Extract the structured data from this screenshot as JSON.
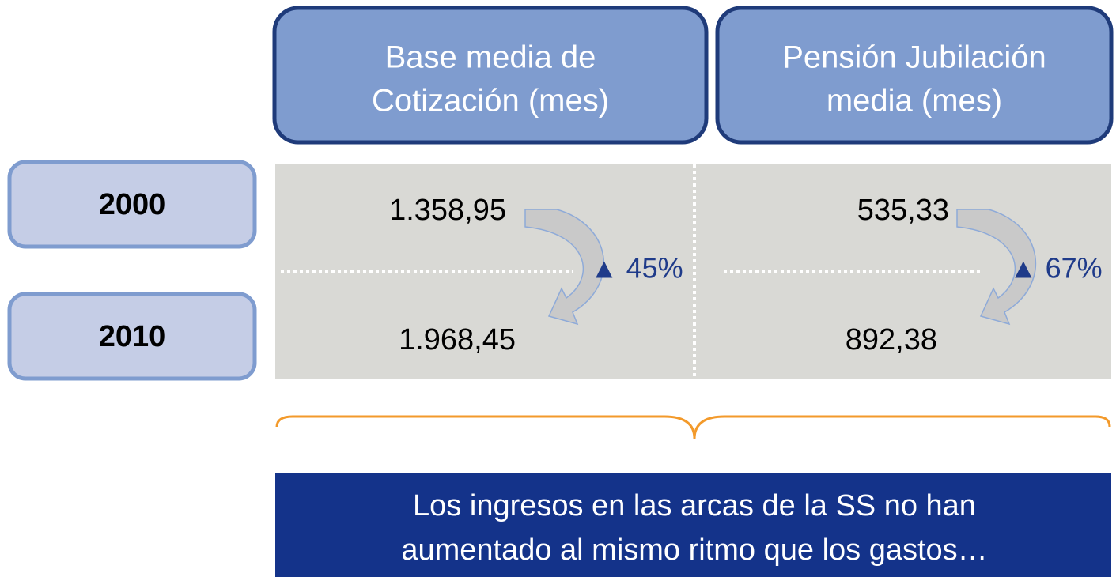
{
  "columns": [
    {
      "lines": [
        "Base media de",
        "Cotización (mes)"
      ]
    },
    {
      "lines": [
        "Pensión Jubilación",
        "media (mes)"
      ]
    }
  ],
  "rows": [
    "2000",
    "2010"
  ],
  "table": {
    "rows": [
      [
        "1.358,95",
        "535,33"
      ],
      [
        "1.968,45",
        "892,38"
      ]
    ]
  },
  "changes": [
    "▲ 45%",
    "▲ 67%"
  ],
  "conclusion": {
    "lines": [
      "Los ingresos en las arcas de la SS no han",
      "aumentado al mismo ritmo que los gastos…"
    ]
  }
}
